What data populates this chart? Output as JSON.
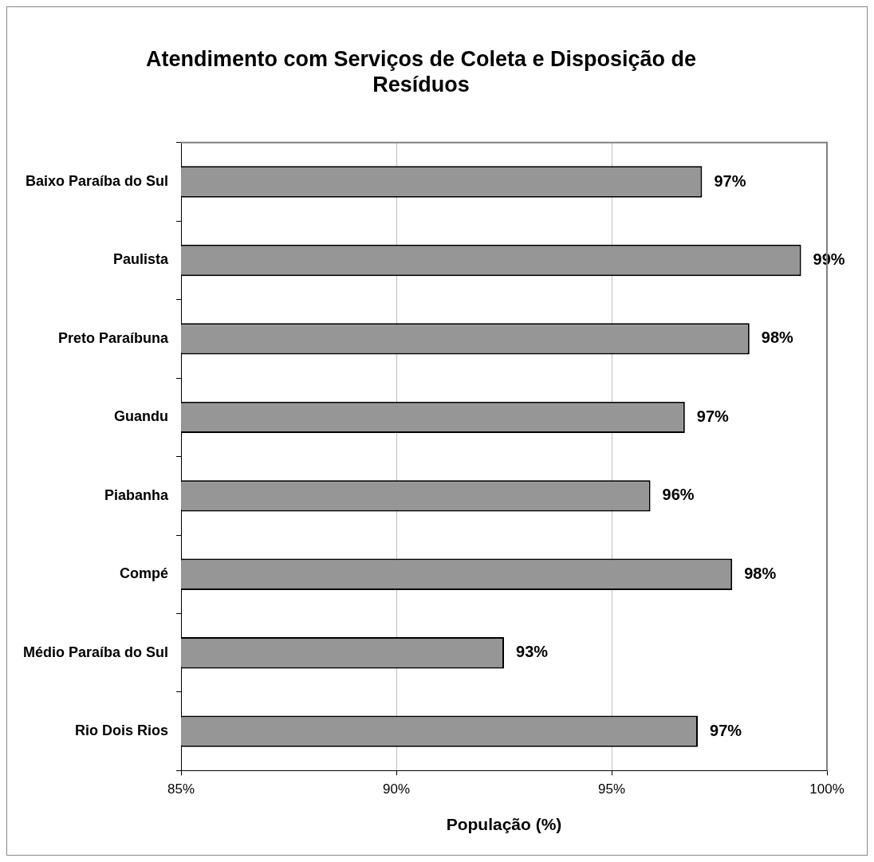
{
  "chart_data": {
    "type": "bar",
    "orientation": "horizontal",
    "title": "Atendimento com Serviços de Coleta e Disposição de Resíduos",
    "xlabel": "População (%)",
    "categories": [
      "Baixo Paraíba do Sul",
      "Paulista",
      "Preto Paraíbuna",
      "Guandu",
      "Piabanha",
      "Compé",
      "Médio Paraíba do Sul",
      "Rio Dois Rios"
    ],
    "values": [
      97.1,
      99.4,
      98.2,
      96.7,
      95.9,
      97.8,
      92.5,
      97.0
    ],
    "value_labels": [
      "97%",
      "99%",
      "98%",
      "97%",
      "96%",
      "98%",
      "93%",
      "97%"
    ],
    "color": "#969696",
    "xlim": [
      85,
      100
    ],
    "xticks": [
      {
        "value": 85,
        "label": "85%"
      },
      {
        "value": 90,
        "label": "90%"
      },
      {
        "value": 95,
        "label": "95%"
      },
      {
        "value": 100,
        "label": "100%"
      }
    ],
    "grid": "x",
    "legend": false
  }
}
